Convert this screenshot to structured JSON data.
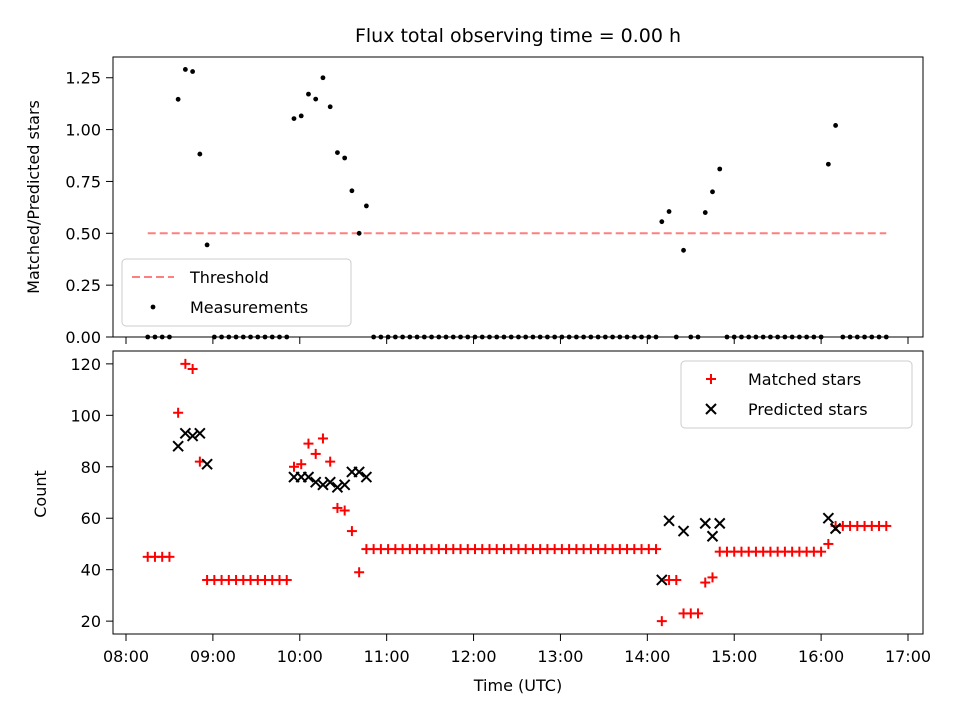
{
  "chart_data": [
    {
      "type": "scatter",
      "title": "Flux total observing time = 0.00 h",
      "xlabel": "",
      "ylabel": "Matched/Predicted stars",
      "xlim": [
        "08:00",
        "17:00"
      ],
      "ylim": [
        0,
        1.35
      ],
      "yticks": [
        "0.00",
        "0.25",
        "0.50",
        "0.75",
        "1.00",
        "1.25"
      ],
      "legend": "lower-left",
      "threshold": {
        "name": "Threshold",
        "value": 0.5,
        "x_start": "08:15",
        "x_end": "16:45",
        "color": "#ff7f7f"
      },
      "series": [
        {
          "name": "Measurements",
          "color": "#000000",
          "points": [
            [
              "08:15",
              0
            ],
            [
              "08:20",
              0
            ],
            [
              "08:25",
              0
            ],
            [
              "08:30",
              0
            ],
            [
              "08:36",
              1.146
            ],
            [
              "08:41",
              1.29
            ],
            [
              "08:46",
              1.28
            ],
            [
              "08:51",
              0.882
            ],
            [
              "08:56",
              0.444
            ],
            [
              "09:01",
              0
            ],
            [
              "09:06",
              0
            ],
            [
              "09:11",
              0
            ],
            [
              "09:16",
              0
            ],
            [
              "09:21",
              0
            ],
            [
              "09:26",
              0
            ],
            [
              "09:31",
              0
            ],
            [
              "09:36",
              0
            ],
            [
              "09:41",
              0
            ],
            [
              "09:46",
              0
            ],
            [
              "09:51",
              0
            ],
            [
              "09:56",
              1.053
            ],
            [
              "10:01",
              1.066
            ],
            [
              "10:06",
              1.171
            ],
            [
              "10:11",
              1.147
            ],
            [
              "10:16",
              1.25
            ],
            [
              "10:21",
              1.11
            ],
            [
              "10:26",
              0.889
            ],
            [
              "10:31",
              0.863
            ],
            [
              "10:36",
              0.705
            ],
            [
              "10:41",
              0.5
            ],
            [
              "10:46",
              0.632
            ],
            [
              "10:51",
              0
            ],
            [
              "10:56",
              0
            ],
            [
              "11:01",
              0
            ],
            [
              "11:06",
              0
            ],
            [
              "11:11",
              0
            ],
            [
              "11:16",
              0
            ],
            [
              "11:21",
              0
            ],
            [
              "11:26",
              0
            ],
            [
              "11:31",
              0
            ],
            [
              "11:36",
              0
            ],
            [
              "11:41",
              0
            ],
            [
              "11:46",
              0
            ],
            [
              "11:51",
              0
            ],
            [
              "11:56",
              0
            ],
            [
              "12:01",
              0
            ],
            [
              "12:06",
              0
            ],
            [
              "12:11",
              0
            ],
            [
              "12:16",
              0
            ],
            [
              "12:21",
              0
            ],
            [
              "12:26",
              0
            ],
            [
              "12:31",
              0
            ],
            [
              "12:36",
              0
            ],
            [
              "12:41",
              0
            ],
            [
              "12:46",
              0
            ],
            [
              "12:51",
              0
            ],
            [
              "12:56",
              0
            ],
            [
              "13:01",
              0
            ],
            [
              "13:06",
              0
            ],
            [
              "13:11",
              0
            ],
            [
              "13:16",
              0
            ],
            [
              "13:21",
              0
            ],
            [
              "13:26",
              0
            ],
            [
              "13:31",
              0
            ],
            [
              "13:36",
              0
            ],
            [
              "13:41",
              0
            ],
            [
              "13:46",
              0
            ],
            [
              "13:51",
              0
            ],
            [
              "13:56",
              0
            ],
            [
              "14:01",
              0
            ],
            [
              "14:06",
              0
            ],
            [
              "14:10",
              0.556
            ],
            [
              "14:15",
              0.605
            ],
            [
              "14:20",
              0
            ],
            [
              "14:25",
              0.418
            ],
            [
              "14:30",
              0
            ],
            [
              "14:35",
              0
            ],
            [
              "14:40",
              0.6
            ],
            [
              "14:45",
              0.7
            ],
            [
              "14:50",
              0.81
            ],
            [
              "14:55",
              0
            ],
            [
              "15:00",
              0
            ],
            [
              "15:05",
              0
            ],
            [
              "15:10",
              0
            ],
            [
              "15:15",
              0
            ],
            [
              "15:20",
              0
            ],
            [
              "15:25",
              0
            ],
            [
              "15:30",
              0
            ],
            [
              "15:35",
              0
            ],
            [
              "15:40",
              0
            ],
            [
              "15:45",
              0
            ],
            [
              "15:50",
              0
            ],
            [
              "15:55",
              0
            ],
            [
              "16:00",
              0
            ],
            [
              "16:05",
              0.833
            ],
            [
              "16:10",
              1.02
            ],
            [
              "16:15",
              0
            ],
            [
              "16:20",
              0
            ],
            [
              "16:25",
              0
            ],
            [
              "16:30",
              0
            ],
            [
              "16:35",
              0
            ],
            [
              "16:40",
              0
            ],
            [
              "16:45",
              0
            ]
          ]
        }
      ]
    },
    {
      "type": "scatter",
      "title": "",
      "xlabel": "Time (UTC)",
      "ylabel": "Count",
      "xlim": [
        "08:00",
        "17:00"
      ],
      "ylim": [
        15,
        125
      ],
      "yticks": [
        "20",
        "40",
        "60",
        "80",
        "100",
        "120"
      ],
      "xticks": [
        "08:00",
        "09:00",
        "10:00",
        "11:00",
        "12:00",
        "13:00",
        "14:00",
        "15:00",
        "16:00",
        "17:00"
      ],
      "legend": "upper-right",
      "series": [
        {
          "name": "Matched stars",
          "marker": "plus",
          "color": "#ff0000",
          "points": [
            [
              "08:15",
              45
            ],
            [
              "08:20",
              45
            ],
            [
              "08:25",
              45
            ],
            [
              "08:30",
              45
            ],
            [
              "08:36",
              101
            ],
            [
              "08:41",
              120
            ],
            [
              "08:46",
              118
            ],
            [
              "08:51",
              82
            ],
            [
              "08:56",
              36
            ],
            [
              "09:01",
              36
            ],
            [
              "09:06",
              36
            ],
            [
              "09:11",
              36
            ],
            [
              "09:16",
              36
            ],
            [
              "09:21",
              36
            ],
            [
              "09:26",
              36
            ],
            [
              "09:31",
              36
            ],
            [
              "09:36",
              36
            ],
            [
              "09:41",
              36
            ],
            [
              "09:46",
              36
            ],
            [
              "09:51",
              36
            ],
            [
              "09:56",
              80
            ],
            [
              "10:01",
              81
            ],
            [
              "10:06",
              89
            ],
            [
              "10:11",
              85
            ],
            [
              "10:16",
              91
            ],
            [
              "10:21",
              82
            ],
            [
              "10:26",
              64
            ],
            [
              "10:31",
              63
            ],
            [
              "10:36",
              55
            ],
            [
              "10:41",
              39
            ],
            [
              "10:46",
              48
            ],
            [
              "10:51",
              48
            ],
            [
              "10:56",
              48
            ],
            [
              "11:01",
              48
            ],
            [
              "11:06",
              48
            ],
            [
              "11:11",
              48
            ],
            [
              "11:16",
              48
            ],
            [
              "11:21",
              48
            ],
            [
              "11:26",
              48
            ],
            [
              "11:31",
              48
            ],
            [
              "11:36",
              48
            ],
            [
              "11:41",
              48
            ],
            [
              "11:46",
              48
            ],
            [
              "11:51",
              48
            ],
            [
              "11:56",
              48
            ],
            [
              "12:01",
              48
            ],
            [
              "12:06",
              48
            ],
            [
              "12:11",
              48
            ],
            [
              "12:16",
              48
            ],
            [
              "12:21",
              48
            ],
            [
              "12:26",
              48
            ],
            [
              "12:31",
              48
            ],
            [
              "12:36",
              48
            ],
            [
              "12:41",
              48
            ],
            [
              "12:46",
              48
            ],
            [
              "12:51",
              48
            ],
            [
              "12:56",
              48
            ],
            [
              "13:01",
              48
            ],
            [
              "13:06",
              48
            ],
            [
              "13:11",
              48
            ],
            [
              "13:16",
              48
            ],
            [
              "13:21",
              48
            ],
            [
              "13:26",
              48
            ],
            [
              "13:31",
              48
            ],
            [
              "13:36",
              48
            ],
            [
              "13:41",
              48
            ],
            [
              "13:46",
              48
            ],
            [
              "13:51",
              48
            ],
            [
              "13:56",
              48
            ],
            [
              "14:01",
              48
            ],
            [
              "14:06",
              48
            ],
            [
              "14:10",
              20
            ],
            [
              "14:15",
              36
            ],
            [
              "14:20",
              36
            ],
            [
              "14:25",
              23
            ],
            [
              "14:30",
              23
            ],
            [
              "14:35",
              23
            ],
            [
              "14:40",
              35
            ],
            [
              "14:45",
              37
            ],
            [
              "14:50",
              47
            ],
            [
              "14:55",
              47
            ],
            [
              "15:00",
              47
            ],
            [
              "15:05",
              47
            ],
            [
              "15:10",
              47
            ],
            [
              "15:15",
              47
            ],
            [
              "15:20",
              47
            ],
            [
              "15:25",
              47
            ],
            [
              "15:30",
              47
            ],
            [
              "15:35",
              47
            ],
            [
              "15:40",
              47
            ],
            [
              "15:45",
              47
            ],
            [
              "15:50",
              47
            ],
            [
              "15:55",
              47
            ],
            [
              "16:00",
              47
            ],
            [
              "16:05",
              50
            ],
            [
              "16:10",
              57
            ],
            [
              "16:15",
              57
            ],
            [
              "16:20",
              57
            ],
            [
              "16:25",
              57
            ],
            [
              "16:30",
              57
            ],
            [
              "16:35",
              57
            ],
            [
              "16:40",
              57
            ],
            [
              "16:45",
              57
            ]
          ]
        },
        {
          "name": "Predicted stars",
          "marker": "x",
          "color": "#000000",
          "points": [
            [
              "08:36",
              88
            ],
            [
              "08:41",
              93
            ],
            [
              "08:46",
              92
            ],
            [
              "08:51",
              93
            ],
            [
              "08:56",
              81
            ],
            [
              "09:56",
              76
            ],
            [
              "10:01",
              76
            ],
            [
              "10:06",
              76
            ],
            [
              "10:11",
              74
            ],
            [
              "10:16",
              73
            ],
            [
              "10:21",
              74
            ],
            [
              "10:26",
              72
            ],
            [
              "10:31",
              73
            ],
            [
              "10:36",
              78
            ],
            [
              "10:41",
              78
            ],
            [
              "10:46",
              76
            ],
            [
              "14:10",
              36
            ],
            [
              "14:15",
              59
            ],
            [
              "14:25",
              55
            ],
            [
              "14:40",
              58
            ],
            [
              "14:45",
              53
            ],
            [
              "14:50",
              58
            ],
            [
              "16:05",
              60
            ],
            [
              "16:10",
              56
            ]
          ]
        }
      ]
    }
  ]
}
